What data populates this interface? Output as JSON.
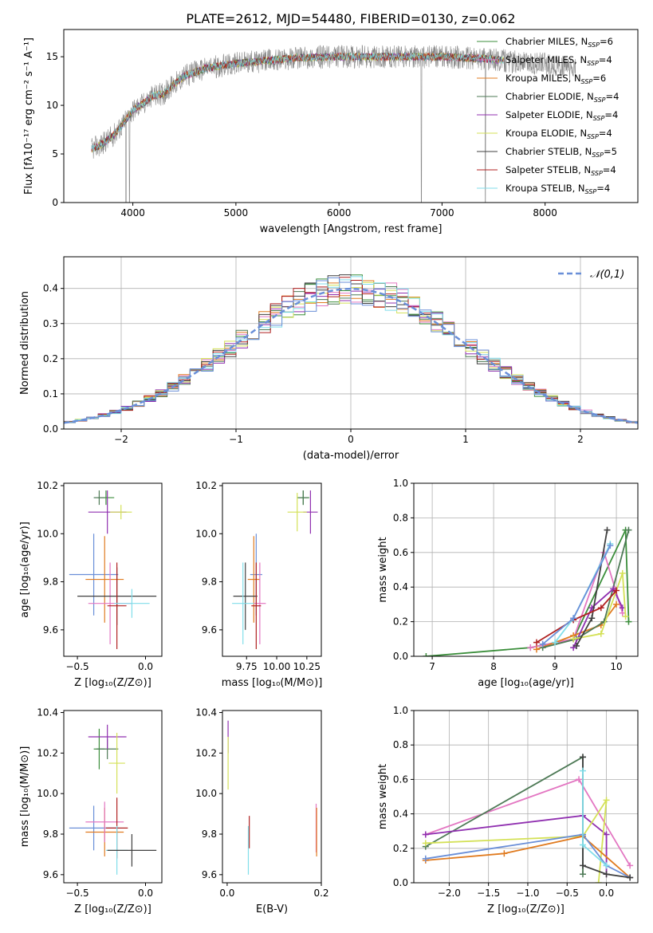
{
  "title": "PLATE=2612, MJD=54480, FIBERID=0130, z=0.062",
  "colors": {
    "chabrier_miles": "#3b8e3b",
    "salpeter_miles": "#e377c2",
    "kroupa_miles": "#e07b20",
    "chabrier_elodie": "#4e7a56",
    "salpeter_elodie": "#9030b0",
    "kroupa_elodie": "#d4e157",
    "chabrier_stelib": "#404040",
    "salpeter_stelib": "#b02020",
    "kroupa_stelib": "#80deea",
    "blue": "#6a8fd8",
    "grid": "#b0b0b0"
  },
  "chart_data": [
    {
      "id": "spectrum",
      "type": "line",
      "xlabel": "wavelength [Angstrom, rest frame]",
      "ylabel": "Flux [fλ10⁻¹⁷ erg cm⁻² s⁻¹ A⁻¹]",
      "xticks": [
        "4000",
        "5000",
        "6000",
        "7000",
        "8000"
      ],
      "yticks": [
        "0",
        "5",
        "10",
        "15"
      ],
      "xlim": [
        3330,
        8900
      ],
      "ylim": [
        0,
        17.8
      ],
      "legend_position": "upper-right",
      "legend": [
        {
          "label": "Chabrier MILES, N",
          "sub": "SSP",
          "eq": "=6",
          "color": "#3b8e3b"
        },
        {
          "label": "Salpeter MILES, N",
          "sub": "SSP",
          "eq": "=4",
          "color": "#e377c2"
        },
        {
          "label": "Kroupa MILES, N",
          "sub": "SSP",
          "eq": "=6",
          "color": "#e07b20"
        },
        {
          "label": "Chabrier ELODIE, N",
          "sub": "SSP",
          "eq": "=4",
          "color": "#4e7a56"
        },
        {
          "label": "Salpeter ELODIE, N",
          "sub": "SSP",
          "eq": "=4",
          "color": "#9030b0"
        },
        {
          "label": "Kroupa ELODIE, N",
          "sub": "SSP",
          "eq": "=4",
          "color": "#d4e157"
        },
        {
          "label": "Chabrier STELIB, N",
          "sub": "SSP",
          "eq": "=5",
          "color": "#404040"
        },
        {
          "label": "Salpeter STELIB, N",
          "sub": "SSP",
          "eq": "=4",
          "color": "#b02020"
        },
        {
          "label": "Kroupa STELIB, N",
          "sub": "SSP",
          "eq": "=4",
          "color": "#80deea"
        }
      ],
      "continuum": {
        "x": [
          3600,
          3700,
          3800,
          3900,
          4000,
          4100,
          4200,
          4300,
          4400,
          4500,
          4700,
          5000,
          5300,
          5600,
          6000,
          6500,
          7000,
          7400,
          7600,
          8000,
          8300
        ],
        "y": [
          5.5,
          6.0,
          6.8,
          8.0,
          9.5,
          10.2,
          11.0,
          11.2,
          12.2,
          13.0,
          13.8,
          14.3,
          14.6,
          14.9,
          15.0,
          15.0,
          15.0,
          14.8,
          14.6,
          14.2,
          13.6
        ]
      },
      "observed_noise": 1.2,
      "dips": [
        {
          "x": 3933,
          "y": 0.0
        },
        {
          "x": 3968,
          "y": 0.0
        },
        {
          "x": 6800,
          "y": 0.0
        },
        {
          "x": 7420,
          "y": 0.0
        }
      ]
    },
    {
      "id": "residuals",
      "type": "step",
      "xlabel": "(data-model)/error",
      "ylabel": "Normed distribution",
      "xticks": [
        "−2",
        "−1",
        "0",
        "1",
        "2"
      ],
      "yticks": [
        "0.0",
        "0.1",
        "0.2",
        "0.3",
        "0.4"
      ],
      "xlim": [
        -2.5,
        2.5
      ],
      "ylim": [
        0,
        0.49
      ],
      "legend": [
        {
          "label": "𝒩(0,1)",
          "color": "#6a8fd8",
          "style": "dashed"
        }
      ],
      "bins": {
        "start": -2.5,
        "width": 0.1
      },
      "histograms": [
        {
          "color": "#3b8e3b",
          "seed": 1
        },
        {
          "color": "#e377c2",
          "seed": 2
        },
        {
          "color": "#e07b20",
          "seed": 3
        },
        {
          "color": "#4e7a56",
          "seed": 4
        },
        {
          "color": "#9030b0",
          "seed": 5
        },
        {
          "color": "#d4e157",
          "seed": 6
        },
        {
          "color": "#404040",
          "seed": 7
        },
        {
          "color": "#b02020",
          "seed": 8
        },
        {
          "color": "#80deea",
          "seed": 9
        },
        {
          "color": "#6a8fd8",
          "seed": 10
        }
      ],
      "gaussian": {
        "mu": 0,
        "sigma": 1
      }
    },
    {
      "id": "age-vs-Z",
      "type": "errorbar",
      "xlabel": "Z [log₁₀(Z/Z⊙)]",
      "ylabel": "age  [log₁₀(age/yr)]",
      "xticks": [
        "−0.5",
        "0.0"
      ],
      "xtick_values": [
        -0.5,
        0.0
      ],
      "yticks": [
        "9.6",
        "9.8",
        "10.0",
        "10.2"
      ],
      "ytick_values": [
        9.6,
        9.8,
        10.0,
        10.2
      ],
      "xlim": [
        -0.6,
        0.12
      ],
      "ylim": [
        9.49,
        10.21
      ],
      "points": [
        {
          "x": -0.29,
          "y": 10.15,
          "xe": 0.06,
          "ye": 0.03,
          "color": "#3b8e3b"
        },
        {
          "x": -0.34,
          "y": 10.15,
          "xe": 0.04,
          "ye": 0.03,
          "color": "#4e7a56"
        },
        {
          "x": -0.28,
          "y": 10.09,
          "xe": 0.14,
          "ye": 0.09,
          "color": "#9030b0"
        },
        {
          "x": -0.18,
          "y": 10.09,
          "xe": 0.08,
          "ye": 0.03,
          "color": "#d4e157"
        },
        {
          "x": -0.38,
          "y": 9.83,
          "xe": 0.18,
          "ye": 0.17,
          "color": "#6a8fd8"
        },
        {
          "x": -0.3,
          "y": 9.81,
          "xe": 0.14,
          "ye": 0.18,
          "color": "#e07b20"
        },
        {
          "x": -0.26,
          "y": 9.71,
          "xe": 0.16,
          "ye": 0.17,
          "color": "#e377c2"
        },
        {
          "x": -0.21,
          "y": 9.74,
          "xe": 0.29,
          "ye": 0.12,
          "color": "#404040"
        },
        {
          "x": -0.21,
          "y": 9.7,
          "xe": 0.07,
          "ye": 0.18,
          "color": "#b02020"
        },
        {
          "x": -0.1,
          "y": 9.71,
          "xe": 0.13,
          "ye": 0.06,
          "color": "#80deea"
        }
      ]
    },
    {
      "id": "age-vs-mass",
      "type": "errorbar",
      "xlabel": "mass [log₁₀(M/M⊙)]",
      "ylabel": "",
      "xticks": [
        "9.75",
        "10.00",
        "10.25"
      ],
      "xtick_values": [
        9.75,
        10.0,
        10.25
      ],
      "yticks": [
        "9.6",
        "9.8",
        "10.0",
        "10.2"
      ],
      "ytick_values": [
        9.6,
        9.8,
        10.0,
        10.2
      ],
      "xlim": [
        9.55,
        10.37
      ],
      "ylim": [
        9.49,
        10.21
      ],
      "points": [
        {
          "x": 10.22,
          "y": 10.15,
          "xe": 0.05,
          "ye": 0.03,
          "color": "#3b8e3b"
        },
        {
          "x": 10.22,
          "y": 10.15,
          "xe": 0.04,
          "ye": 0.03,
          "color": "#4e7a56"
        },
        {
          "x": 10.28,
          "y": 10.09,
          "xe": 0.06,
          "ye": 0.09,
          "color": "#9030b0"
        },
        {
          "x": 10.17,
          "y": 10.09,
          "xe": 0.08,
          "ye": 0.08,
          "color": "#d4e157"
        },
        {
          "x": 9.83,
          "y": 9.83,
          "xe": 0.05,
          "ye": 0.17,
          "color": "#6a8fd8"
        },
        {
          "x": 9.81,
          "y": 9.81,
          "xe": 0.05,
          "ye": 0.18,
          "color": "#e07b20"
        },
        {
          "x": 9.86,
          "y": 9.71,
          "xe": 0.05,
          "ye": 0.17,
          "color": "#e377c2"
        },
        {
          "x": 9.74,
          "y": 9.74,
          "xe": 0.1,
          "ye": 0.14,
          "color": "#404040"
        },
        {
          "x": 9.83,
          "y": 9.7,
          "xe": 0.04,
          "ye": 0.18,
          "color": "#b02020"
        },
        {
          "x": 9.72,
          "y": 9.71,
          "xe": 0.09,
          "ye": 0.17,
          "color": "#80deea"
        }
      ]
    },
    {
      "id": "weight-vs-age",
      "type": "line",
      "xlabel": "age  [log₁₀(age/yr)]",
      "ylabel": "mass weight",
      "xticks": [
        "7",
        "8",
        "9",
        "10"
      ],
      "xtick_values": [
        7,
        8,
        9,
        10
      ],
      "yticks": [
        "0.0",
        "0.2",
        "0.4",
        "0.6",
        "0.8",
        "1.0"
      ],
      "ytick_values": [
        0,
        0.2,
        0.4,
        0.6,
        0.8,
        1.0
      ],
      "xlim": [
        6.7,
        10.35
      ],
      "ylim": [
        0,
        1.0
      ],
      "series": [
        {
          "color": "#3b8e3b",
          "x": [
            6.9,
            8.6,
            9.3,
            10.15,
            10.2
          ],
          "y": [
            0.0,
            0.05,
            0.1,
            0.73,
            0.2
          ]
        },
        {
          "color": "#e377c2",
          "x": [
            8.6,
            9.3,
            9.8,
            10.1
          ],
          "y": [
            0.05,
            0.1,
            0.6,
            0.25
          ]
        },
        {
          "color": "#e07b20",
          "x": [
            8.7,
            9.3,
            9.75,
            10.0
          ],
          "y": [
            0.04,
            0.12,
            0.18,
            0.3
          ]
        },
        {
          "color": "#4e7a56",
          "x": [
            8.8,
            9.35,
            9.8,
            10.2
          ],
          "y": [
            0.05,
            0.1,
            0.2,
            0.73
          ]
        },
        {
          "color": "#9030b0",
          "x": [
            9.3,
            9.6,
            9.95,
            10.1
          ],
          "y": [
            0.05,
            0.28,
            0.39,
            0.28
          ]
        },
        {
          "color": "#d4e157",
          "x": [
            9.3,
            9.75,
            10.1,
            10.15
          ],
          "y": [
            0.1,
            0.13,
            0.48,
            0.23
          ]
        },
        {
          "color": "#404040",
          "x": [
            9.35,
            9.6,
            9.85
          ],
          "y": [
            0.06,
            0.22,
            0.73
          ]
        },
        {
          "color": "#b02020",
          "x": [
            8.7,
            9.3,
            9.75,
            10.0
          ],
          "y": [
            0.08,
            0.21,
            0.28,
            0.38
          ]
        },
        {
          "color": "#80deea",
          "x": [
            9.0,
            9.3,
            9.9
          ],
          "y": [
            0.08,
            0.22,
            0.65
          ]
        },
        {
          "color": "#6a8fd8",
          "x": [
            8.8,
            9.3,
            9.9
          ],
          "y": [
            0.07,
            0.22,
            0.64
          ]
        }
      ]
    },
    {
      "id": "mass-vs-Z",
      "type": "errorbar",
      "xlabel": "Z [log₁₀(Z/Z⊙)]",
      "ylabel": "mass [log₁₀(M/M⊙)]",
      "xticks": [
        "−0.5",
        "0.0"
      ],
      "xtick_values": [
        -0.5,
        0.0
      ],
      "yticks": [
        "9.6",
        "9.8",
        "10.0",
        "10.2",
        "10.4"
      ],
      "ytick_values": [
        9.6,
        9.8,
        10.0,
        10.2,
        10.4
      ],
      "xlim": [
        -0.6,
        0.12
      ],
      "ylim": [
        9.56,
        10.41
      ],
      "points": [
        {
          "x": -0.34,
          "y": 10.22,
          "xe": 0.04,
          "ye": 0.1,
          "color": "#3b8e3b"
        },
        {
          "x": -0.28,
          "y": 10.22,
          "xe": 0.08,
          "ye": 0.05,
          "color": "#4e7a56"
        },
        {
          "x": -0.28,
          "y": 10.28,
          "xe": 0.14,
          "ye": 0.06,
          "color": "#9030b0"
        },
        {
          "x": -0.21,
          "y": 10.15,
          "xe": 0.06,
          "ye": 0.15,
          "color": "#d4e157"
        },
        {
          "x": -0.38,
          "y": 9.83,
          "xe": 0.18,
          "ye": 0.11,
          "color": "#6a8fd8"
        },
        {
          "x": -0.3,
          "y": 9.81,
          "xe": 0.14,
          "ye": 0.12,
          "color": "#e07b20"
        },
        {
          "x": -0.3,
          "y": 9.86,
          "xe": 0.14,
          "ye": 0.1,
          "color": "#e377c2"
        },
        {
          "x": -0.21,
          "y": 9.83,
          "xe": 0.08,
          "ye": 0.15,
          "color": "#b02020"
        },
        {
          "x": -0.21,
          "y": 9.72,
          "xe": 0.08,
          "ye": 0.12,
          "color": "#80deea"
        },
        {
          "x": -0.1,
          "y": 9.72,
          "xe": 0.18,
          "ye": 0.08,
          "color": "#404040"
        }
      ]
    },
    {
      "id": "mass-vs-EBV",
      "type": "errorbar",
      "xlabel": "E(B-V)",
      "ylabel": "",
      "xticks": [
        "0.0",
        "0.2"
      ],
      "xtick_values": [
        0.0,
        0.2
      ],
      "yticks": [
        "9.6",
        "9.8",
        "10.0",
        "10.2",
        "10.4"
      ],
      "ytick_values": [
        9.6,
        9.8,
        10.0,
        10.2,
        10.4
      ],
      "xlim": [
        -0.01,
        0.2
      ],
      "ylim": [
        9.56,
        10.41
      ],
      "points": [
        {
          "x": 0.002,
          "y": 10.28,
          "xe": 0.0,
          "ye": 0.08,
          "color": "#9030b0"
        },
        {
          "x": 0.002,
          "y": 10.15,
          "xe": 0.0,
          "ye": 0.13,
          "color": "#d4e157"
        },
        {
          "x": 0.047,
          "y": 9.81,
          "xe": 0.0,
          "ye": 0.08,
          "color": "#b02020"
        },
        {
          "x": 0.045,
          "y": 9.72,
          "xe": 0.0,
          "ye": 0.12,
          "color": "#80deea"
        },
        {
          "x": 0.189,
          "y": 9.83,
          "xe": 0.0,
          "ye": 0.12,
          "color": "#e377c2"
        },
        {
          "x": 0.19,
          "y": 9.81,
          "xe": 0.0,
          "ye": 0.12,
          "color": "#e07b20"
        }
      ]
    },
    {
      "id": "weight-vs-Z",
      "type": "line",
      "xlabel": "Z [log₁₀(Z/Z⊙)]",
      "ylabel": "mass weight",
      "xticks": [
        "−2.0",
        "−1.5",
        "−1.0",
        "−0.5",
        "0.0"
      ],
      "xtick_values": [
        -2.0,
        -1.5,
        -1.0,
        -0.5,
        0.0
      ],
      "yticks": [
        "0.0",
        "0.2",
        "0.4",
        "0.6",
        "0.8",
        "1.0"
      ],
      "ytick_values": [
        0,
        0.2,
        0.4,
        0.6,
        0.8,
        1.0
      ],
      "xlim": [
        -2.45,
        0.4
      ],
      "ylim": [
        0,
        1.0
      ],
      "series": [
        {
          "color": "#e377c2",
          "x": [
            -2.3,
            -0.35,
            0.3
          ],
          "y": [
            0.28,
            0.6,
            0.1
          ]
        },
        {
          "color": "#4e7a56",
          "x": [
            -2.3,
            -0.3,
            -0.3
          ],
          "y": [
            0.21,
            0.73,
            0.05
          ]
        },
        {
          "color": "#9030b0",
          "x": [
            -2.3,
            -0.3,
            0.0,
            0.0
          ],
          "y": [
            0.28,
            0.39,
            0.28,
            0.05
          ]
        },
        {
          "color": "#d4e157",
          "x": [
            -2.3,
            -0.3,
            0.0,
            -0.1
          ],
          "y": [
            0.23,
            0.27,
            0.48,
            0.0
          ]
        },
        {
          "color": "#e07b20",
          "x": [
            -2.3,
            -1.3,
            -0.3,
            0.3
          ],
          "y": [
            0.13,
            0.17,
            0.27,
            0.03
          ]
        },
        {
          "color": "#6a8fd8",
          "x": [
            -2.3,
            -0.3,
            0.0,
            0.3
          ],
          "y": [
            0.14,
            0.28,
            0.1,
            0.03
          ]
        },
        {
          "color": "#404040",
          "x": [
            -0.3,
            -0.3,
            0.0,
            0.3
          ],
          "y": [
            0.73,
            0.1,
            0.05,
            0.03
          ]
        },
        {
          "color": "#80deea",
          "x": [
            -0.3,
            -0.3,
            0.0
          ],
          "y": [
            0.65,
            0.22,
            0.1
          ]
        }
      ]
    }
  ]
}
